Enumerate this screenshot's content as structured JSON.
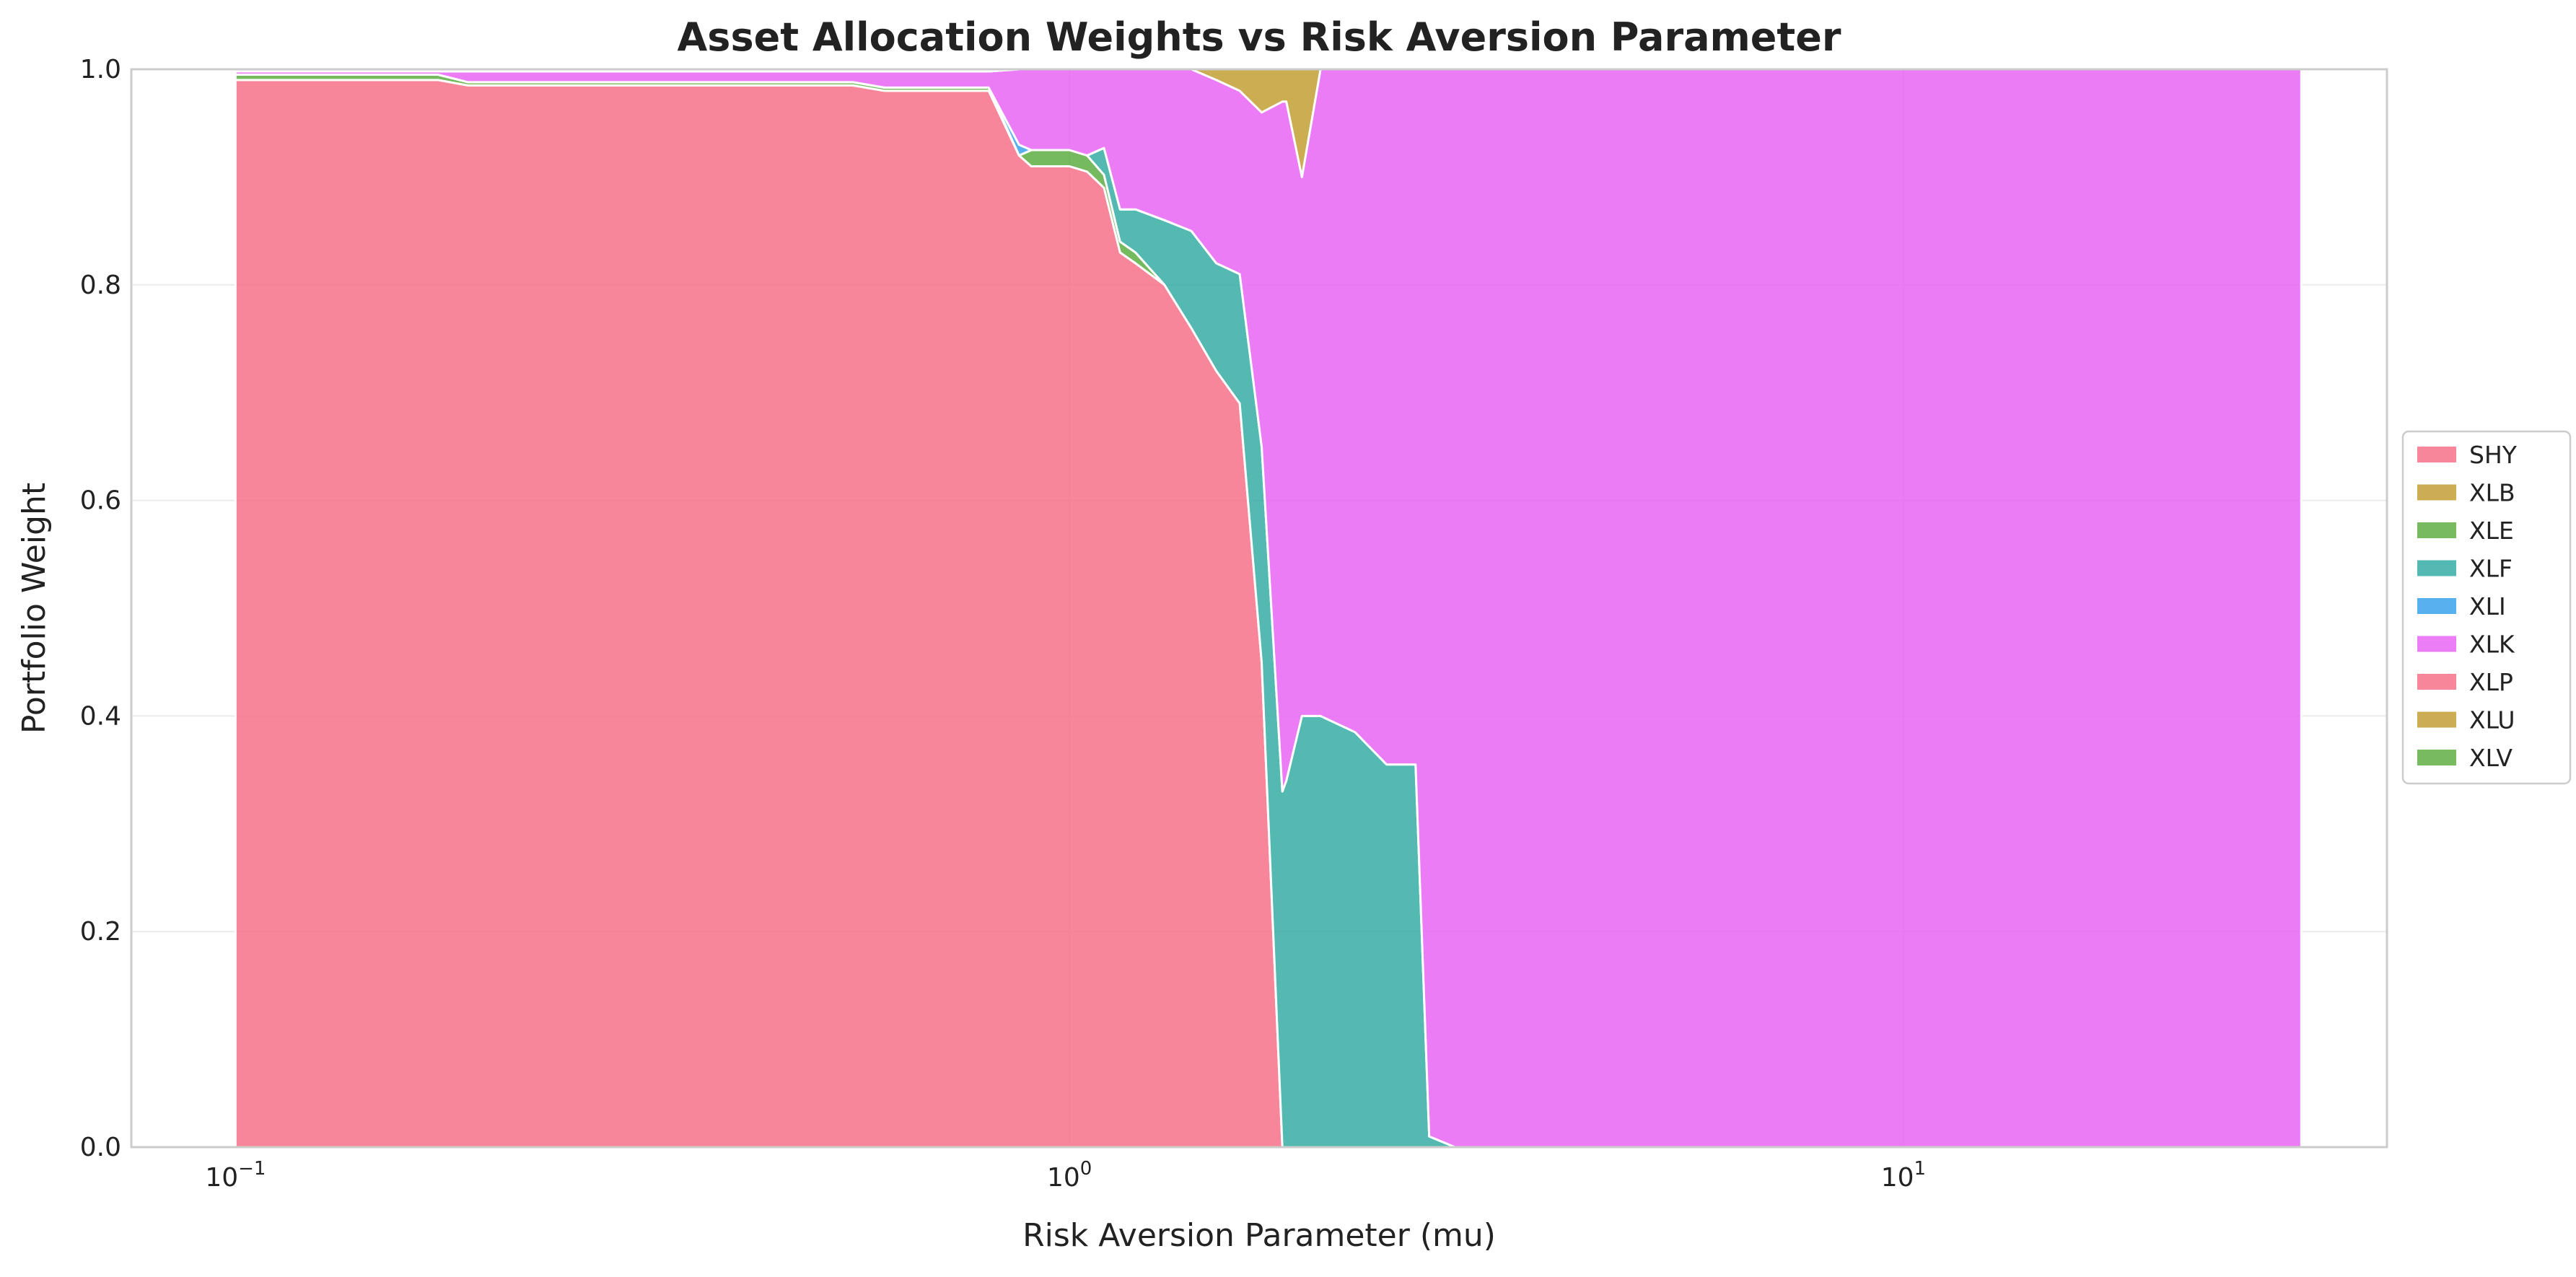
{
  "chart_data": {
    "type": "area",
    "title": "Asset Allocation Weights vs Risk Aversion Parameter",
    "xlabel": "Risk Aversion Parameter (mu)",
    "ylabel": "Portfolio Weight",
    "x_scale": "log",
    "xlim": [
      0.075,
      38
    ],
    "ylim": [
      0,
      1.0
    ],
    "x_ticks": [
      {
        "value": 0.1,
        "base": "10",
        "exp": "−1"
      },
      {
        "value": 1,
        "base": "10",
        "exp": "0"
      },
      {
        "value": 10,
        "base": "10",
        "exp": "1"
      }
    ],
    "y_ticks": [
      "0.0",
      "0.2",
      "0.4",
      "0.6",
      "0.8",
      "1.0"
    ],
    "grid": true,
    "legend_position": "center-right",
    "x": [
      0.1,
      0.175,
      0.19,
      0.55,
      0.6,
      0.72,
      0.8,
      0.87,
      0.9,
      1.0,
      1.05,
      1.1,
      1.15,
      1.2,
      1.3,
      1.4,
      1.5,
      1.6,
      1.7,
      1.8,
      1.82,
      1.9,
      2.0,
      2.2,
      2.4,
      2.6,
      2.7,
      2.9,
      3.1,
      30
    ],
    "series": [
      {
        "name": "SHY",
        "color": "#f77189",
        "values": [
          0.99,
          0.99,
          0.985,
          0.985,
          0.98,
          0.98,
          0.98,
          0.92,
          0.91,
          0.91,
          0.905,
          0.89,
          0.83,
          0.82,
          0.8,
          0.76,
          0.72,
          0.69,
          0.45,
          0.0,
          0.0,
          0.0,
          0.0,
          0.0,
          0.0,
          0.0,
          0.0,
          0.0,
          0.0,
          0.0
        ]
      },
      {
        "name": "XLB",
        "color": "#c39f35",
        "values": [
          0,
          0,
          0,
          0,
          0,
          0,
          0,
          0,
          0,
          0,
          0,
          0,
          0,
          0,
          0,
          0,
          0,
          0,
          0,
          0,
          0,
          0,
          0,
          0,
          0,
          0,
          0,
          0,
          0,
          0
        ]
      },
      {
        "name": "XLE",
        "color": "#5fae44",
        "values": [
          0.005,
          0.005,
          0.003,
          0.003,
          0.003,
          0.003,
          0.003,
          0.0,
          0.015,
          0.015,
          0.015,
          0.012,
          0.01,
          0.01,
          0.0,
          0.0,
          0.0,
          0.0,
          0.0,
          0.0,
          0.0,
          0.0,
          0.0,
          0.0,
          0.0,
          0.0,
          0.0,
          0.0,
          0.0,
          0.0
        ]
      },
      {
        "name": "XLF",
        "color": "#36ada4",
        "values": [
          0,
          0,
          0,
          0,
          0,
          0,
          0,
          0,
          0,
          0,
          0,
          0.025,
          0.03,
          0.04,
          0.06,
          0.09,
          0.1,
          0.12,
          0.2,
          0.33,
          0.34,
          0.4,
          0.4,
          0.385,
          0.355,
          0.355,
          0.01,
          0.0,
          0.0,
          0.0
        ]
      },
      {
        "name": "XLI",
        "color": "#3ba3ec",
        "values": [
          0,
          0,
          0,
          0,
          0,
          0,
          0,
          0.01,
          0.0,
          0.0,
          0.0,
          0.0,
          0.0,
          0.0,
          0.0,
          0.0,
          0.0,
          0.0,
          0.0,
          0.0,
          0.0,
          0.0,
          0.0,
          0.0,
          0.0,
          0.0,
          0.0,
          0.0,
          0.0,
          0.0
        ]
      },
      {
        "name": "XLK",
        "color": "#e866f4",
        "values": [
          0.003,
          0.003,
          0.01,
          0.01,
          0.015,
          0.015,
          0.015,
          0.07,
          0.075,
          0.075,
          0.08,
          0.073,
          0.13,
          0.13,
          0.14,
          0.15,
          0.17,
          0.17,
          0.31,
          0.64,
          0.63,
          0.5,
          0.6,
          0.615,
          0.645,
          0.645,
          0.99,
          1.0,
          1.0,
          1.0
        ]
      },
      {
        "name": "XLP",
        "color": "#f77189",
        "values": [
          0,
          0,
          0,
          0,
          0,
          0,
          0,
          0,
          0,
          0,
          0,
          0,
          0,
          0,
          0,
          0,
          0,
          0,
          0,
          0,
          0,
          0,
          0,
          0,
          0,
          0,
          0,
          0,
          0,
          0
        ]
      },
      {
        "name": "XLU",
        "color": "#c39f35",
        "values": [
          0,
          0,
          0,
          0,
          0,
          0,
          0,
          0,
          0,
          0,
          0,
          0,
          0,
          0,
          0,
          0.015,
          0.01,
          0.02,
          0.04,
          0.03,
          0.03,
          0.1,
          0.0,
          0.0,
          0.0,
          0.0,
          0.0,
          0.0,
          0.0,
          0.0
        ]
      },
      {
        "name": "XLV",
        "color": "#5fae44",
        "values": [
          0.002,
          0.002,
          0.002,
          0.002,
          0.002,
          0.002,
          0.002,
          0,
          0,
          0,
          0,
          0,
          0,
          0,
          0,
          0,
          0,
          0,
          0,
          0,
          0,
          0,
          0,
          0,
          0,
          0,
          0,
          0,
          0,
          0
        ]
      }
    ]
  }
}
